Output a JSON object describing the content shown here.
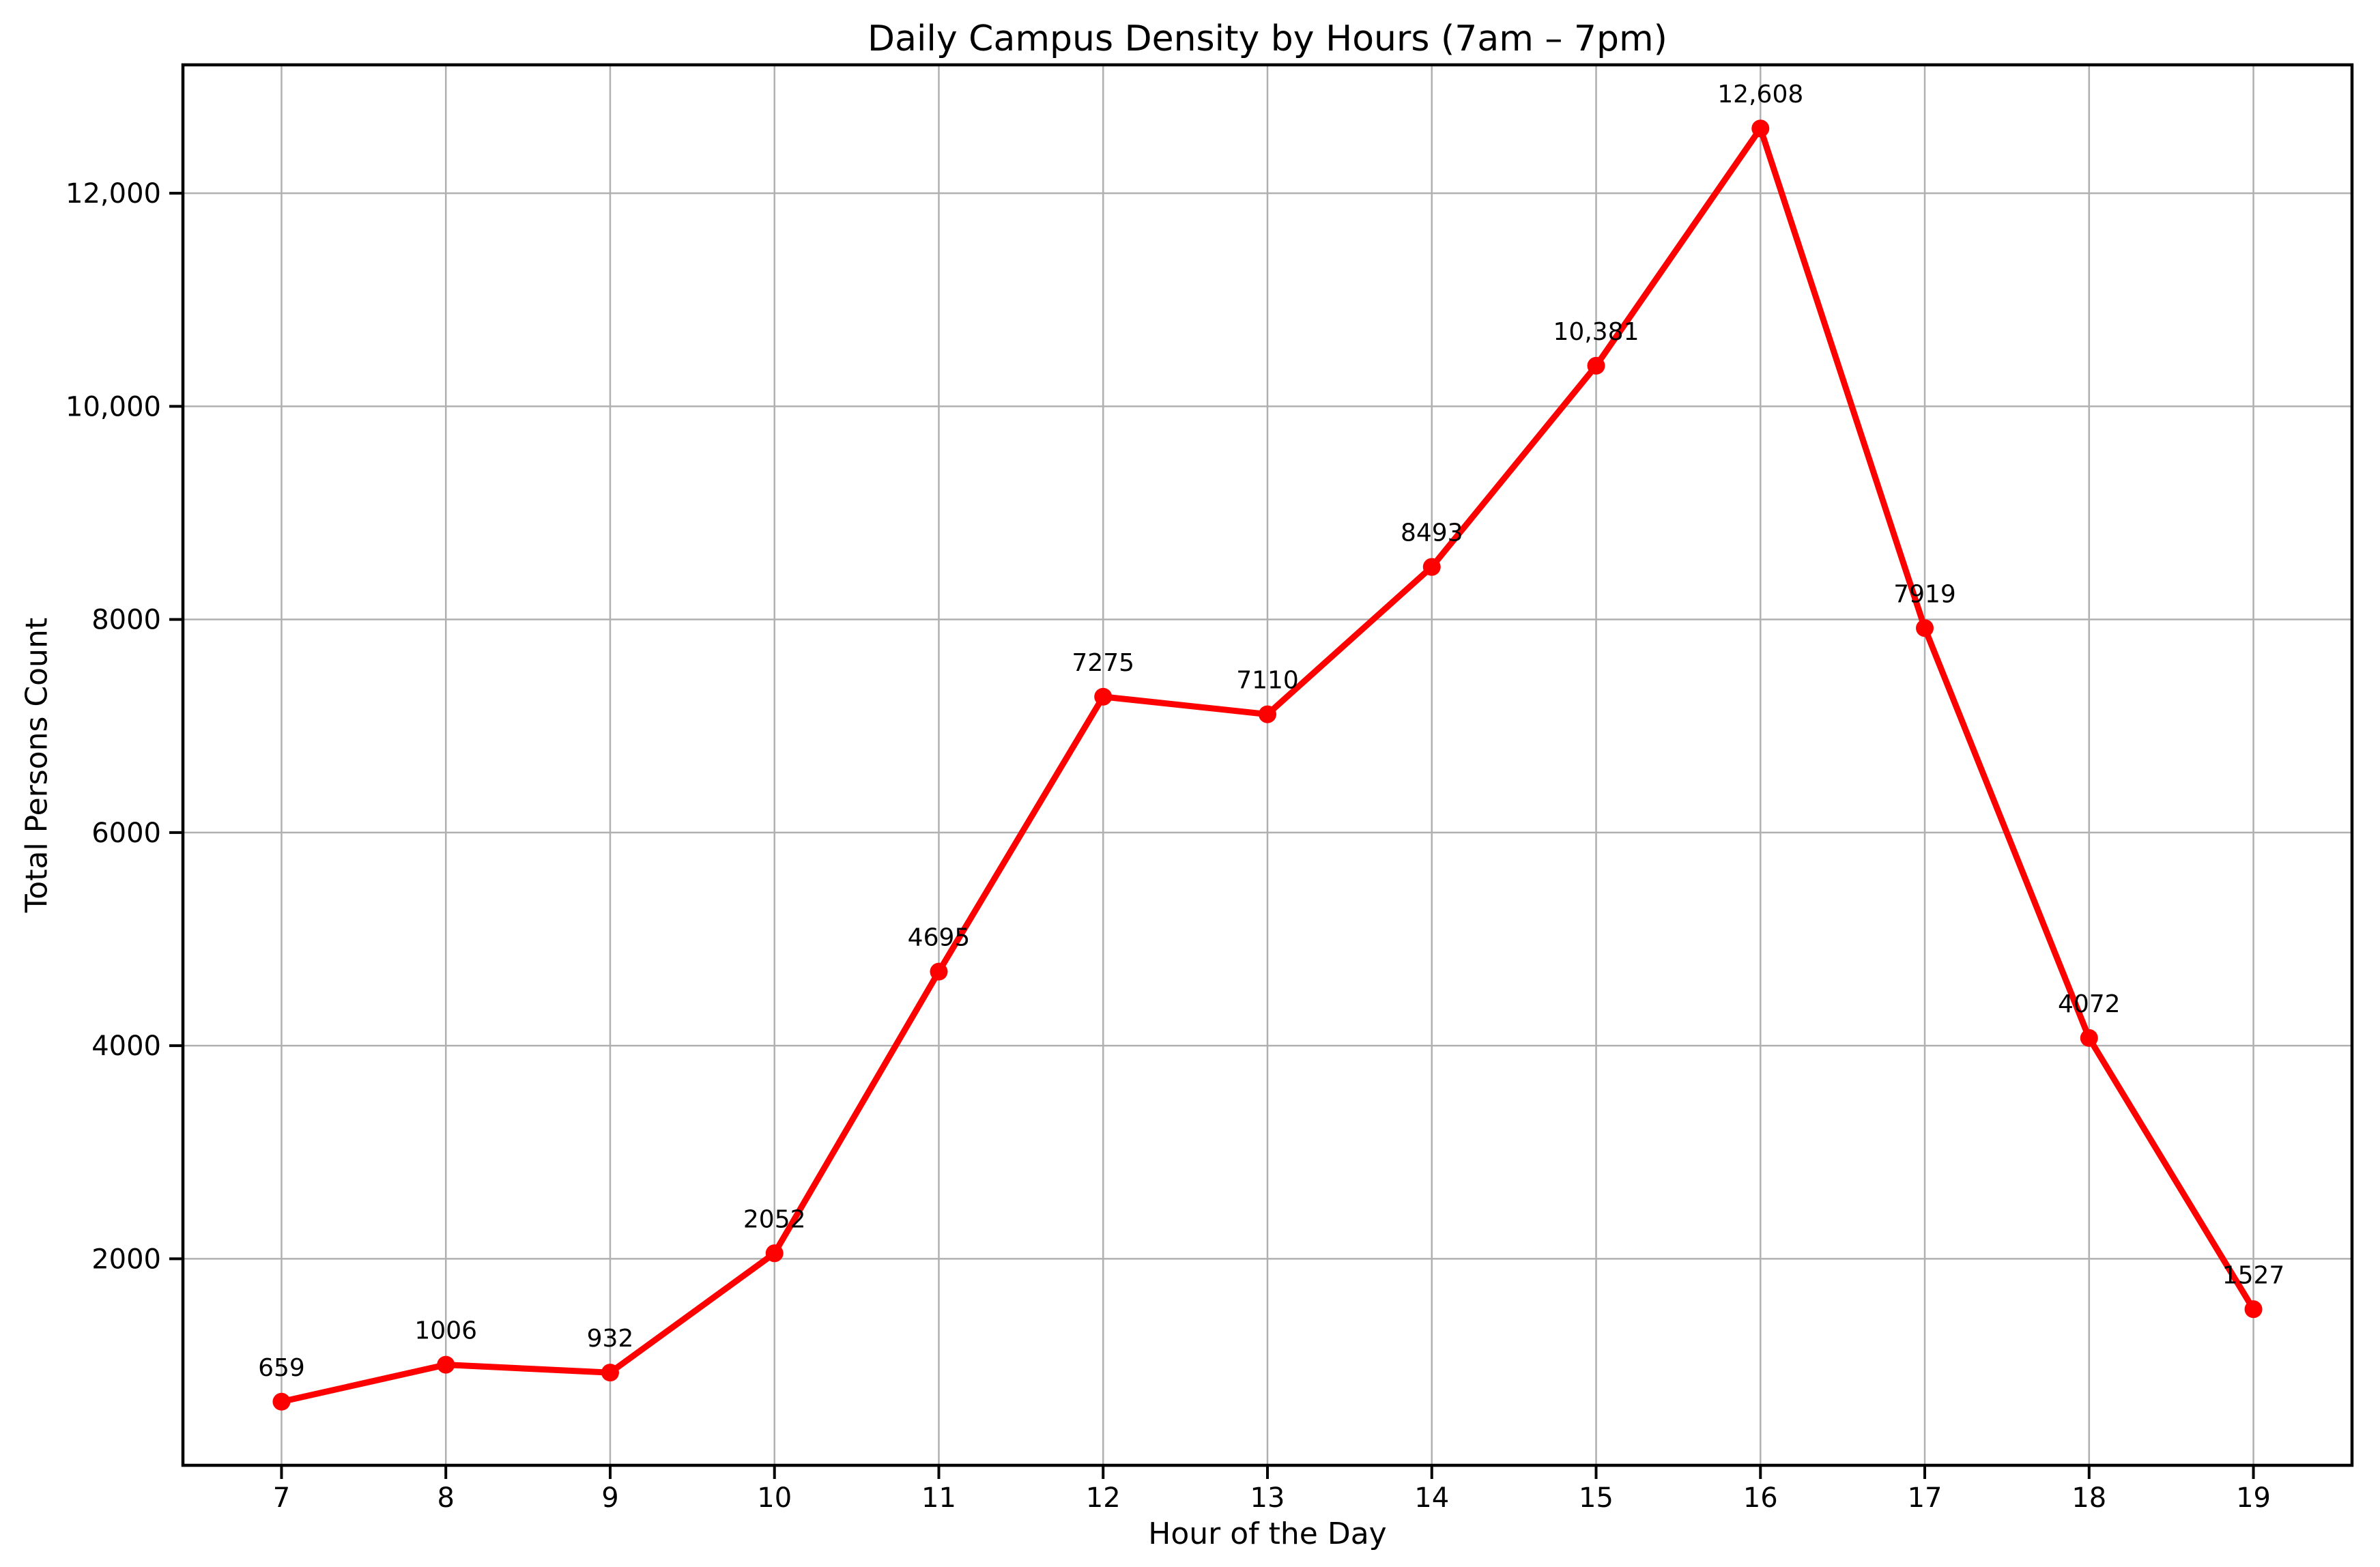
{
  "chart_data": {
    "type": "line",
    "title": "Daily Campus Density by Hours (7am – 7pm)",
    "xlabel": "Hour of the Day",
    "ylabel": "Total Persons Count",
    "x": [
      7,
      8,
      9,
      10,
      11,
      12,
      13,
      14,
      15,
      16,
      17,
      18,
      19
    ],
    "series": [
      {
        "name": "Total Persons Count",
        "values": [
          659,
          1006,
          932,
          2052,
          4695,
          7275,
          7110,
          8493,
          10381,
          12608,
          7919,
          4072,
          1527
        ]
      }
    ],
    "point_labels": [
      "659",
      "1006",
      "932",
      "2052",
      "4695",
      "7275",
      "7110",
      "8493",
      "10,381",
      "12,608",
      "7919",
      "4072",
      "1527"
    ],
    "x_tick_labels": [
      "7",
      "8",
      "9",
      "10",
      "11",
      "12",
      "13",
      "14",
      "15",
      "16",
      "17",
      "18",
      "19"
    ],
    "y_ticks": [
      {
        "value": 2000,
        "label": "2000"
      },
      {
        "value": 4000,
        "label": "4000"
      },
      {
        "value": 6000,
        "label": "6000"
      },
      {
        "value": 8000,
        "label": "8000"
      },
      {
        "value": 10000,
        "label": "10,000"
      },
      {
        "value": 12000,
        "label": "12,000"
      }
    ],
    "xlim": [
      6.4,
      19.6
    ],
    "ylim": [
      62,
      13205
    ],
    "grid": true,
    "legend": "none",
    "marker": "circle",
    "colors": {
      "line": "#ff0000",
      "marker": "#ff0000",
      "grid": "#b0b0b0",
      "axis": "#000000",
      "text": "#000000",
      "background": "#ffffff"
    }
  }
}
